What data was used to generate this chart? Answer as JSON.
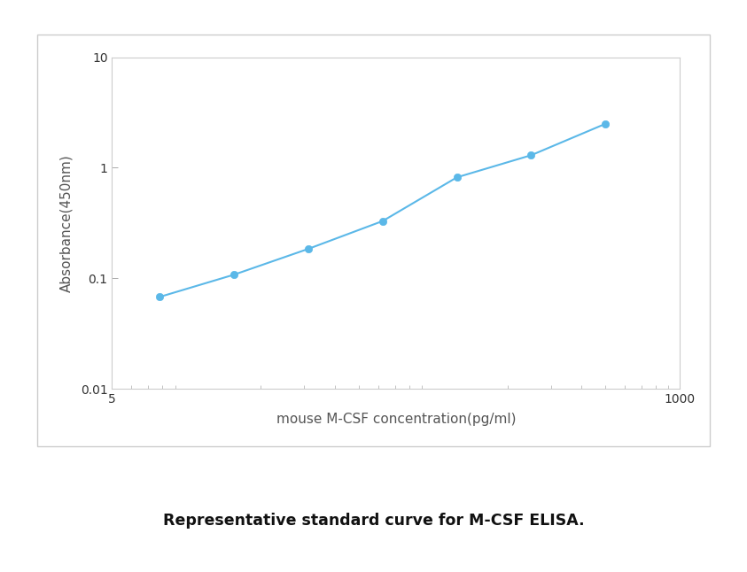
{
  "x": [
    7.8,
    15.6,
    31.25,
    62.5,
    125,
    250,
    500
  ],
  "y": [
    0.068,
    0.108,
    0.185,
    0.33,
    0.82,
    1.3,
    2.5
  ],
  "line_color": "#5bb8e8",
  "marker_color": "#5bb8e8",
  "marker_size": 6,
  "line_width": 1.5,
  "xlabel": "mouse M-CSF concentration(pg/ml)",
  "ylabel": "Absorbance(450nm)",
  "xlim": [
    5,
    1000
  ],
  "ylim": [
    0.01,
    10
  ],
  "yticks": [
    0.01,
    0.1,
    1,
    10
  ],
  "caption": "Representative standard curve for M-CSF ELISA.",
  "caption_fontsize": 12.5,
  "xlabel_fontsize": 11,
  "ylabel_fontsize": 11,
  "tick_fontsize": 10,
  "background_color": "#ffffff",
  "box_edgecolor": "#cccccc"
}
